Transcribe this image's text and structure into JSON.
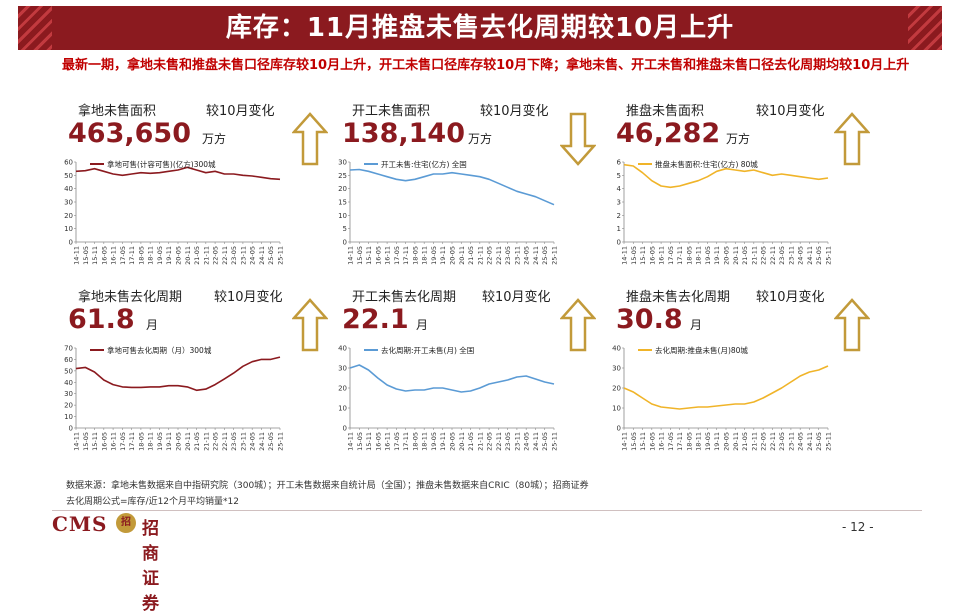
{
  "title": "库存：11月推盘未售去化周期较10月上升",
  "summary": "最新一期，拿地未售和推盘未售口径库存较10月上升，开工未售口径库存较10月下降；拿地未售、开工未售和推盘未售口径去化周期均较10月上升",
  "colors": {
    "brand": "#8b1a1f",
    "arrow": "#c29a3a",
    "red_series": "#8b1a1f",
    "blue_series": "#5b9bd5",
    "gold_series": "#f0b429"
  },
  "x_ticks": [
    "14-11",
    "15-05",
    "15-11",
    "16-05",
    "16-11",
    "17-05",
    "17-11",
    "18-05",
    "18-11",
    "19-05",
    "19-11",
    "20-05",
    "20-11",
    "21-05",
    "21-11",
    "22-05",
    "22-11",
    "23-05",
    "23-11",
    "24-05",
    "24-11",
    "25-05",
    "25-11"
  ],
  "panels": [
    {
      "id": "land-inventory",
      "label": "拿地未售面积",
      "change_label": "较10月变化",
      "value": "463,650",
      "unit": "万方",
      "direction": "up",
      "chart_data": {
        "type": "line",
        "color": "#8b1a1f",
        "legend": "拿地可售(计容可售)(亿方)300城",
        "ylim": [
          0,
          60
        ],
        "yticks": [
          0,
          10,
          20,
          30,
          40,
          50,
          60
        ],
        "x": [
          "14-11",
          "15-05",
          "15-11",
          "16-05",
          "16-11",
          "17-05",
          "17-11",
          "18-05",
          "18-11",
          "19-05",
          "19-11",
          "20-05",
          "20-11",
          "21-05",
          "21-11",
          "22-05",
          "22-11",
          "23-05",
          "23-11",
          "24-05",
          "24-11",
          "25-05",
          "25-11"
        ],
        "values": [
          53,
          53.5,
          55,
          53,
          51,
          50,
          51,
          52,
          51.5,
          52,
          53,
          54,
          56,
          54,
          52,
          53,
          51,
          51,
          50,
          49.5,
          48.5,
          47.5,
          47
        ]
      }
    },
    {
      "id": "started-inventory",
      "label": "开工未售面积",
      "change_label": "较10月变化",
      "value": "138,140",
      "unit": "万方",
      "direction": "down",
      "chart_data": {
        "type": "line",
        "color": "#5b9bd5",
        "legend": "开工未售:住宅(亿方) 全国",
        "ylim": [
          0,
          30
        ],
        "yticks": [
          0,
          5,
          10,
          15,
          20,
          25,
          30
        ],
        "x": [
          "14-11",
          "15-05",
          "15-11",
          "16-05",
          "16-11",
          "17-05",
          "17-11",
          "18-05",
          "18-11",
          "19-05",
          "19-11",
          "20-05",
          "20-11",
          "21-05",
          "21-11",
          "22-05",
          "22-11",
          "23-05",
          "23-11",
          "24-05",
          "24-11",
          "25-05",
          "25-11"
        ],
        "values": [
          27,
          27.2,
          26.5,
          25.5,
          24.5,
          23.5,
          23,
          23.5,
          24.5,
          25.5,
          25.5,
          26,
          25.5,
          25,
          24.5,
          23.5,
          22,
          20.5,
          19,
          18,
          17,
          15.5,
          14
        ]
      }
    },
    {
      "id": "launched-inventory",
      "label": "推盘未售面积",
      "change_label": "较10月变化",
      "value": "46,282",
      "unit": "万方",
      "direction": "up",
      "chart_data": {
        "type": "line",
        "color": "#f0b429",
        "legend": "推盘未售面积:住宅(亿方) 80城",
        "ylim": [
          0,
          6
        ],
        "yticks": [
          0,
          1,
          2,
          3,
          4,
          5,
          6
        ],
        "x": [
          "14-11",
          "15-05",
          "15-11",
          "16-05",
          "16-11",
          "17-05",
          "17-11",
          "18-05",
          "18-11",
          "19-05",
          "19-11",
          "20-05",
          "20-11",
          "21-05",
          "21-11",
          "22-05",
          "22-11",
          "23-05",
          "23-11",
          "24-05",
          "24-11",
          "25-05",
          "25-11"
        ],
        "values": [
          5.8,
          5.7,
          5.2,
          4.6,
          4.2,
          4.1,
          4.2,
          4.4,
          4.6,
          4.9,
          5.3,
          5.5,
          5.4,
          5.3,
          5.4,
          5.2,
          5.0,
          5.1,
          5.0,
          4.9,
          4.8,
          4.7,
          4.8
        ]
      }
    },
    {
      "id": "land-cycle",
      "label": "拿地未售去化周期",
      "change_label": "较10月变化",
      "value": "61.8",
      "unit": "月",
      "direction": "up",
      "chart_data": {
        "type": "line",
        "color": "#8b1a1f",
        "legend": "拿地可售去化周期（月）300城",
        "ylim": [
          0,
          70
        ],
        "yticks": [
          0,
          10,
          20,
          30,
          40,
          50,
          60,
          70
        ],
        "x": [
          "14-11",
          "15-05",
          "15-11",
          "16-05",
          "16-11",
          "17-05",
          "17-11",
          "18-05",
          "18-11",
          "19-05",
          "19-11",
          "20-05",
          "20-11",
          "21-05",
          "21-11",
          "22-05",
          "22-11",
          "23-05",
          "23-11",
          "24-05",
          "24-11",
          "25-05",
          "25-11"
        ],
        "values": [
          52,
          53,
          49,
          42,
          38,
          36,
          35.5,
          35.5,
          36,
          36,
          37,
          37,
          36,
          33,
          34,
          38,
          43,
          48,
          54,
          58,
          60,
          60,
          62
        ]
      }
    },
    {
      "id": "started-cycle",
      "label": "开工未售去化周期",
      "change_label": "较10月变化",
      "value": "22.1",
      "unit": "月",
      "direction": "up",
      "chart_data": {
        "type": "line",
        "color": "#5b9bd5",
        "legend": "去化周期:开工未售(月) 全国",
        "ylim": [
          0,
          40
        ],
        "yticks": [
          0,
          10,
          20,
          30,
          40
        ],
        "x": [
          "14-11",
          "15-05",
          "15-11",
          "16-05",
          "16-11",
          "17-05",
          "17-11",
          "18-05",
          "18-11",
          "19-05",
          "19-11",
          "20-05",
          "20-11",
          "21-05",
          "21-11",
          "22-05",
          "22-11",
          "23-05",
          "23-11",
          "24-05",
          "24-11",
          "25-05",
          "25-11"
        ],
        "values": [
          30,
          31.5,
          29,
          25,
          21.5,
          19.5,
          18.5,
          19,
          19,
          20,
          20,
          19,
          18,
          18.5,
          20,
          22,
          23,
          24,
          25.5,
          26,
          24.5,
          23,
          22
        ]
      }
    },
    {
      "id": "launched-cycle",
      "label": "推盘未售去化周期",
      "change_label": "较10月变化",
      "value": "30.8",
      "unit": "月",
      "direction": "up",
      "chart_data": {
        "type": "line",
        "color": "#f0b429",
        "legend": "去化周期:推盘未售(月)80城",
        "ylim": [
          0,
          40
        ],
        "yticks": [
          0,
          10,
          20,
          30,
          40
        ],
        "x": [
          "14-11",
          "15-05",
          "15-11",
          "16-05",
          "16-11",
          "17-05",
          "17-11",
          "18-05",
          "18-11",
          "19-05",
          "19-11",
          "20-05",
          "20-11",
          "21-05",
          "21-11",
          "22-05",
          "22-11",
          "23-05",
          "23-11",
          "24-05",
          "24-11",
          "25-05",
          "25-11"
        ],
        "values": [
          20,
          18,
          15,
          12,
          10.5,
          10,
          9.5,
          10,
          10.5,
          10.5,
          11,
          11.5,
          12,
          12,
          13,
          15,
          17.5,
          20,
          23,
          26,
          28,
          29,
          31
        ]
      }
    }
  ],
  "footer": {
    "source": "数据来源：拿地未售数据来自中指研究院（300城）；开工未售数据来自统计局（全国）；推盘未售数据来自CRIC（80城）；招商证券",
    "formula": "去化周期公式=库存/近12个月平均销量*12",
    "logo_cms": "CMS",
    "logo_seal": "招",
    "logo_name": "招商证券",
    "page_number": "- 12 -"
  }
}
